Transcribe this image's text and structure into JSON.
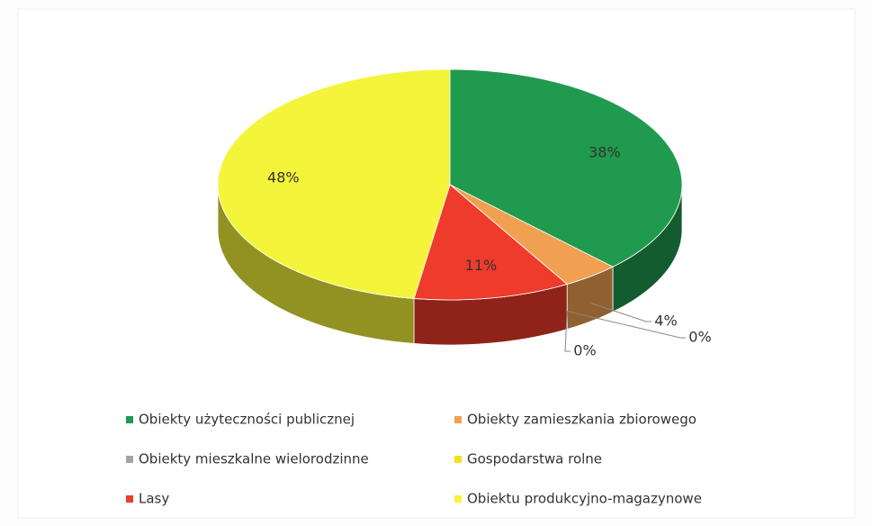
{
  "chart_data": {
    "type": "pie",
    "categories": [
      "Obiekty użyteczności publicznej",
      "Obiekty zamieszkania zbiorowego",
      "Obiekty mieszkalne wielorodzinne",
      "Gospodarstwa rolne",
      "Lasy",
      "Obiektu produkcyjno-magazynowe"
    ],
    "values": [
      38,
      4,
      0,
      0,
      11,
      48
    ],
    "value_labels": [
      "38%",
      "4%",
      "0%",
      "0%",
      "11%",
      "48%"
    ],
    "colors": [
      "#1f9a4e",
      "#f0a050",
      "#a3a3a3",
      "#f2e21e",
      "#ee3b2b",
      "#f4f43a"
    ],
    "legend": "bottom"
  }
}
